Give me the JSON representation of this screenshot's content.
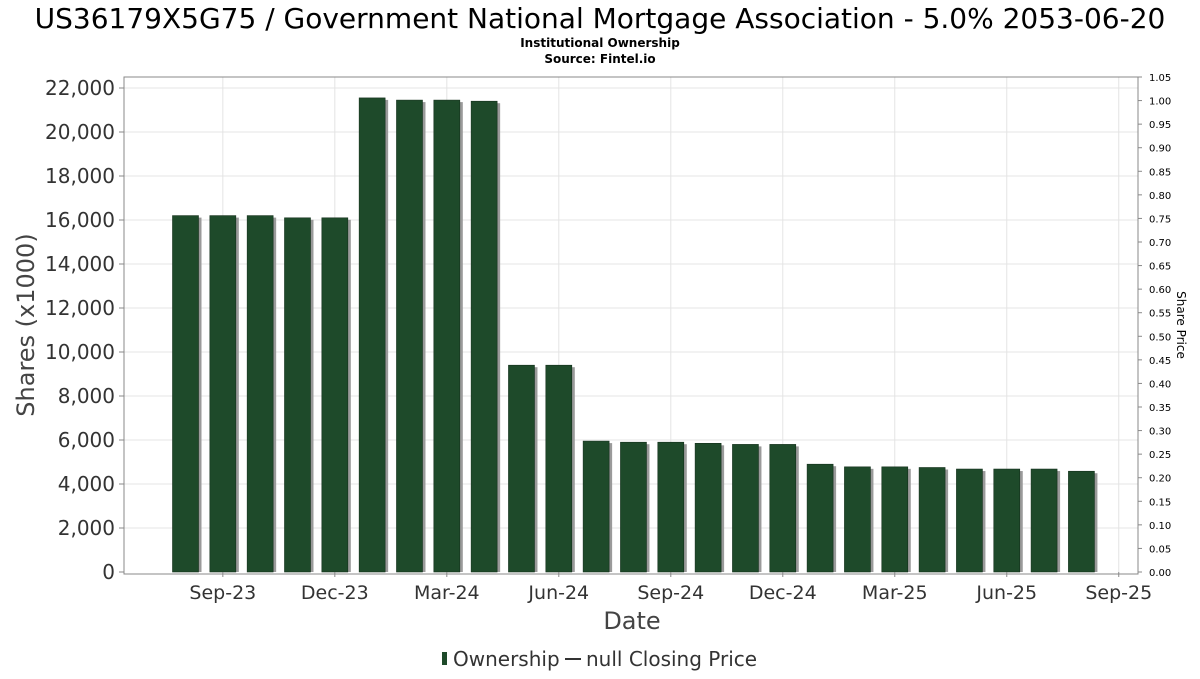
{
  "chart_data": {
    "type": "bar",
    "title": "US36179X5G75 / Government National Mortgage Association - 5.0% 2053-06-20",
    "subtitle": "Institutional Ownership",
    "source": "Source: Fintel.io",
    "xlabel": "Date",
    "ylabel": "Shares (x1000)",
    "y2label": "Share Price",
    "ylim": [
      0,
      22500
    ],
    "y2lim": [
      0,
      1.05
    ],
    "yticks": [
      "0",
      "2,000",
      "4,000",
      "6,000",
      "8,000",
      "10,000",
      "12,000",
      "14,000",
      "16,000",
      "18,000",
      "20,000",
      "22,000"
    ],
    "y2ticks": [
      "0.00",
      "0.05",
      "0.10",
      "0.15",
      "0.20",
      "0.25",
      "0.30",
      "0.35",
      "0.40",
      "0.45",
      "0.50",
      "0.55",
      "0.60",
      "0.65",
      "0.70",
      "0.75",
      "0.80",
      "0.85",
      "0.90",
      "0.95",
      "1.00",
      "1.05"
    ],
    "xticks": [
      "Sep-23",
      "Dec-23",
      "Mar-24",
      "Jun-24",
      "Sep-24",
      "Dec-24",
      "Mar-25",
      "Jun-25",
      "Sep-25"
    ],
    "grid": true,
    "series": [
      {
        "name": "Ownership",
        "color": "#1e4a2a",
        "values": [
          16200,
          16200,
          16200,
          16100,
          16100,
          21550,
          21450,
          21450,
          21400,
          9400,
          9400,
          5950,
          5900,
          5900,
          5850,
          5800,
          5800,
          4900,
          4780,
          4780,
          4750,
          4680,
          4680,
          4680,
          4580
        ]
      }
    ],
    "legend": {
      "position": "bottom",
      "items": [
        {
          "label": "Ownership",
          "symbol": "bar",
          "color": "#1e4a2a"
        },
        {
          "label": "null Closing Price",
          "symbol": "line",
          "color": "#333333"
        }
      ]
    }
  }
}
